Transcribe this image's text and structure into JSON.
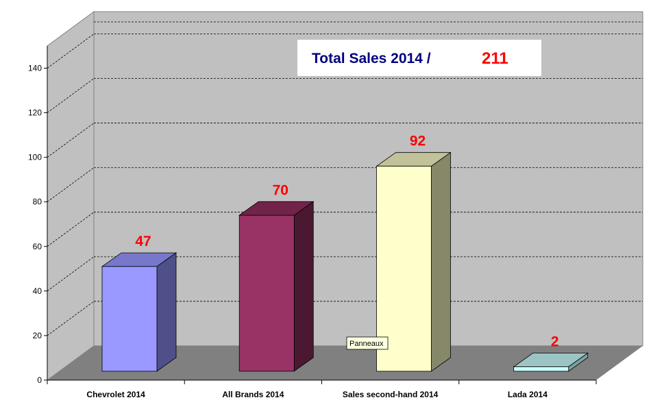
{
  "chart_data": {
    "type": "bar",
    "title_text": "Total Sales 2014 /",
    "title_total": "211",
    "categories": [
      "Chevrolet 2014",
      "All Brands 2014",
      "Sales second-hand 2014",
      "Lada 2014"
    ],
    "values": [
      47,
      70,
      92,
      2
    ],
    "data_labels": [
      "47",
      "70",
      "92",
      "2"
    ],
    "ylim": [
      0,
      150
    ],
    "yticks": [
      0,
      20,
      40,
      60,
      80,
      100,
      120,
      140
    ],
    "grid": true,
    "tooltip": "Panneaux",
    "colors": {
      "title_text": "#000080",
      "title_total": "#ff0000",
      "data_label": "#ff0000",
      "wall": "#c0c0c0",
      "floor": "#808080",
      "series": [
        {
          "front": "#9999ff",
          "top": "#7777cc",
          "side": "#4f4f8a"
        },
        {
          "front": "#993366",
          "top": "#722448",
          "side": "#4b1832"
        },
        {
          "front": "#ffffcc",
          "top": "#c2c29a",
          "side": "#87876a"
        },
        {
          "front": "#ccffff",
          "top": "#9cc4c4",
          "side": "#7aa3a3"
        }
      ]
    }
  }
}
